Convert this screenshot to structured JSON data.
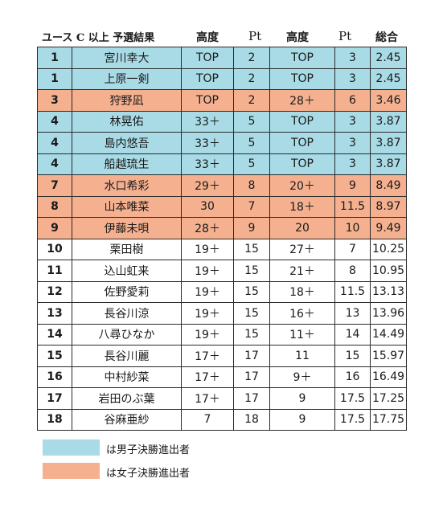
{
  "header": {
    "title": "ユース C 以上 予選結果",
    "col_height1": "高度",
    "col_pt1": "Pt",
    "col_height2": "高度",
    "col_pt2": "Pt",
    "col_total": "総合"
  },
  "colors": {
    "male_finalist": "#a8dbe6",
    "female_finalist": "#f4b08f"
  },
  "rows": [
    {
      "rank": "1",
      "name": "宮川幸大",
      "h1": "TOP",
      "p1": "2",
      "h2": "TOP",
      "p2": "3",
      "total": "2.45",
      "group": "male"
    },
    {
      "rank": "1",
      "name": "上原一剣",
      "h1": "TOP",
      "p1": "2",
      "h2": "TOP",
      "p2": "3",
      "total": "2.45",
      "group": "male"
    },
    {
      "rank": "3",
      "name": "狩野凪",
      "h1": "TOP",
      "p1": "2",
      "h2": "28＋",
      "p2": "6",
      "total": "3.46",
      "group": "female"
    },
    {
      "rank": "4",
      "name": "林晃佑",
      "h1": "33＋",
      "p1": "5",
      "h2": "TOP",
      "p2": "3",
      "total": "3.87",
      "group": "male"
    },
    {
      "rank": "4",
      "name": "島内悠吾",
      "h1": "33＋",
      "p1": "5",
      "h2": "TOP",
      "p2": "3",
      "total": "3.87",
      "group": "male"
    },
    {
      "rank": "4",
      "name": "船越琉生",
      "h1": "33＋",
      "p1": "5",
      "h2": "TOP",
      "p2": "3",
      "total": "3.87",
      "group": "male"
    },
    {
      "rank": "7",
      "name": "水口希彩",
      "h1": "29＋",
      "p1": "8",
      "h2": "20＋",
      "p2": "9",
      "total": "8.49",
      "group": "female"
    },
    {
      "rank": "8",
      "name": "山本唯菜",
      "h1": "30",
      "p1": "7",
      "h2": "18＋",
      "p2": "11.5",
      "total": "8.97",
      "group": "female"
    },
    {
      "rank": "9",
      "name": "伊藤未唄",
      "h1": "28＋",
      "p1": "9",
      "h2": "20",
      "p2": "10",
      "total": "9.49",
      "group": "female"
    },
    {
      "rank": "10",
      "name": "栗田樹",
      "h1": "19＋",
      "p1": "15",
      "h2": "27＋",
      "p2": "7",
      "total": "10.25",
      "group": "none"
    },
    {
      "rank": "11",
      "name": "込山虹来",
      "h1": "19＋",
      "p1": "15",
      "h2": "21＋",
      "p2": "8",
      "total": "10.95",
      "group": "none"
    },
    {
      "rank": "12",
      "name": "佐野愛莉",
      "h1": "19＋",
      "p1": "15",
      "h2": "18＋",
      "p2": "11.5",
      "total": "13.13",
      "group": "none"
    },
    {
      "rank": "13",
      "name": "長谷川涼",
      "h1": "19＋",
      "p1": "15",
      "h2": "16＋",
      "p2": "13",
      "total": "13.96",
      "group": "none"
    },
    {
      "rank": "14",
      "name": "八尋ひなか",
      "h1": "19＋",
      "p1": "15",
      "h2": "11＋",
      "p2": "14",
      "total": "14.49",
      "group": "none"
    },
    {
      "rank": "15",
      "name": "長谷川麗",
      "h1": "17＋",
      "p1": "17",
      "h2": "11",
      "p2": "15",
      "total": "15.97",
      "group": "none"
    },
    {
      "rank": "16",
      "name": "中村紗菜",
      "h1": "17＋",
      "p1": "17",
      "h2": "9＋",
      "p2": "16",
      "total": "16.49",
      "group": "none"
    },
    {
      "rank": "17",
      "name": "岩田のぶ葉",
      "h1": "17＋",
      "p1": "17",
      "h2": "9",
      "p2": "17.5",
      "total": "17.25",
      "group": "none"
    },
    {
      "rank": "18",
      "name": "谷麻亜紗",
      "h1": "7",
      "p1": "18",
      "h2": "9",
      "p2": "17.5",
      "total": "17.75",
      "group": "none"
    }
  ],
  "legend": {
    "male_label": "は男子決勝進出者",
    "female_label": "は女子決勝進出者"
  }
}
